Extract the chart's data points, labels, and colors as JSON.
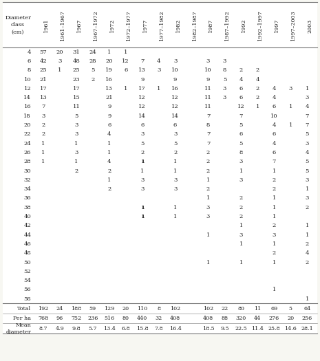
{
  "col_labels": [
    "Diameter\nclass\n(cm)",
    "1961",
    "1961–1967",
    "1967",
    "1967–1972",
    "1972",
    "1972–1977",
    "1977",
    "1977–1982",
    "1982",
    "1982–1987",
    "1987",
    "1987–1992",
    "1992",
    "1992–1997",
    "1997",
    "1997–2003",
    "2003"
  ],
  "diameter_classes": [
    4,
    6,
    8,
    10,
    12,
    14,
    16,
    18,
    20,
    22,
    24,
    26,
    28,
    30,
    32,
    34,
    36,
    38,
    40,
    42,
    44,
    46,
    48,
    50,
    52,
    54,
    56,
    58
  ],
  "data": {
    "4": [
      "57",
      "20",
      "31",
      "24",
      "1",
      "1",
      "",
      "",
      "",
      "",
      "",
      "",
      "",
      "",
      "",
      "",
      ""
    ],
    "6": [
      "42",
      "3",
      "48",
      "28",
      "20",
      "12",
      "7",
      "4",
      "3",
      "",
      "3",
      "3",
      "",
      "",
      "",
      "",
      ""
    ],
    "8": [
      "25",
      "1",
      "25",
      "5",
      "19",
      "6",
      "13",
      "3",
      "10",
      "",
      "10",
      "8",
      "2",
      "2",
      "",
      "",
      ""
    ],
    "10": [
      "21",
      "",
      "23",
      "2",
      "16",
      "",
      "9",
      "",
      "9",
      "",
      "9",
      "5",
      "4",
      "4",
      "",
      "",
      ""
    ],
    "12": [
      "17",
      "",
      "17",
      "",
      "13",
      "1",
      "17",
      "1",
      "16",
      "",
      "11",
      "3",
      "6",
      "2",
      "4",
      "3",
      "1"
    ],
    "14": [
      "13",
      "",
      "15",
      "",
      "21",
      "",
      "12",
      "",
      "12",
      "",
      "11",
      "3",
      "6",
      "2",
      "4",
      "",
      "3"
    ],
    "16": [
      "7",
      "",
      "11",
      "",
      "9",
      "",
      "12",
      "",
      "12",
      "",
      "11",
      "",
      "12",
      "1",
      "6",
      "1",
      "4"
    ],
    "18": [
      "3",
      "",
      "5",
      "",
      "9",
      "",
      "14",
      "",
      "14",
      "",
      "7",
      "",
      "7",
      "",
      "10",
      "",
      "7"
    ],
    "20": [
      "2",
      "",
      "3",
      "",
      "6",
      "",
      "6",
      "",
      "6",
      "",
      "8",
      "",
      "5",
      "",
      "4",
      "1",
      "7"
    ],
    "22": [
      "2",
      "",
      "3",
      "",
      "4",
      "",
      "3",
      "",
      "3",
      "",
      "7",
      "",
      "6",
      "",
      "6",
      "",
      "5"
    ],
    "24": [
      "1",
      "",
      "1",
      "",
      "1",
      "",
      "5",
      "",
      "5",
      "",
      "7",
      "",
      "5",
      "",
      "4",
      "",
      "3"
    ],
    "26": [
      "1",
      "",
      "3",
      "",
      "1",
      "",
      "2",
      "",
      "2",
      "",
      "2",
      "",
      "8",
      "",
      "6",
      "",
      "4"
    ],
    "28": [
      "1",
      "",
      "1",
      "",
      "4",
      "",
      "1",
      "",
      "1",
      "",
      "2",
      "",
      "3",
      "",
      "7",
      "",
      "5"
    ],
    "30": [
      "",
      "",
      "2",
      "",
      "2",
      "",
      "1",
      "",
      "1",
      "",
      "2",
      "",
      "1",
      "",
      "1",
      "",
      "5"
    ],
    "32": [
      "",
      "",
      "",
      "",
      "1",
      "",
      "3",
      "",
      "3",
      "",
      "1",
      "",
      "3",
      "",
      "2",
      "",
      "3"
    ],
    "34": [
      "",
      "",
      "",
      "",
      "2",
      "",
      "3",
      "",
      "3",
      "",
      "2",
      "",
      "",
      "",
      "2",
      "",
      "1"
    ],
    "36": [
      "",
      "",
      "",
      "",
      "",
      "",
      "",
      "",
      "",
      "",
      "1",
      "",
      "2",
      "",
      "1",
      "",
      "3"
    ],
    "38": [
      "",
      "",
      "",
      "",
      "",
      "",
      "1",
      "",
      "1",
      "",
      "3",
      "",
      "2",
      "",
      "1",
      "",
      "2"
    ],
    "40": [
      "",
      "",
      "",
      "",
      "",
      "",
      "1",
      "",
      "1",
      "",
      "3",
      "",
      "2",
      "",
      "1",
      "",
      ""
    ],
    "42": [
      "",
      "",
      "",
      "",
      "",
      "",
      "",
      "",
      "",
      "",
      "",
      "",
      "1",
      "",
      "2",
      "",
      "1"
    ],
    "44": [
      "",
      "",
      "",
      "",
      "",
      "",
      "",
      "",
      "",
      "",
      "1",
      "",
      "3",
      "",
      "3",
      "",
      "1"
    ],
    "46": [
      "",
      "",
      "",
      "",
      "",
      "",
      "",
      "",
      "",
      "",
      "",
      "",
      "1",
      "",
      "1",
      "",
      "2"
    ],
    "48": [
      "",
      "",
      "",
      "",
      "",
      "",
      "",
      "",
      "",
      "",
      "",
      "",
      "",
      "",
      "2",
      "",
      "4"
    ],
    "50": [
      "",
      "",
      "",
      "",
      "",
      "",
      "",
      "",
      "",
      "",
      "1",
      "",
      "1",
      "",
      "1",
      "",
      "2"
    ],
    "52": [
      "",
      "",
      "",
      "",
      "",
      "",
      "",
      "",
      "",
      "",
      "",
      "",
      "",
      "",
      "",
      "",
      ""
    ],
    "54": [
      "",
      "",
      "",
      "",
      "",
      "",
      "",
      "",
      "",
      "",
      "",
      "",
      "",
      "",
      "",
      "",
      ""
    ],
    "56": [
      "",
      "",
      "",
      "",
      "",
      "",
      "",
      "",
      "",
      "",
      "",
      "",
      "",
      "",
      "1",
      "",
      ""
    ],
    "58": [
      "",
      "",
      "",
      "",
      "",
      "",
      "",
      "",
      "",
      "",
      "",
      "",
      "",
      "",
      "",
      "",
      "1"
    ]
  },
  "totals": [
    "192",
    "24",
    "188",
    "59",
    "129",
    "20",
    "110",
    "8",
    "102",
    "",
    "102",
    "22",
    "80",
    "11",
    "69",
    "5",
    "64"
  ],
  "per_ha": [
    "768",
    "96",
    "752",
    "236",
    "516",
    "80",
    "440",
    "32",
    "408",
    "",
    "408",
    "88",
    "320",
    "44",
    "276",
    "20",
    "256"
  ],
  "mean_diam": [
    "8.7",
    "4.9",
    "9.8",
    "5.7",
    "13.4",
    "6.8",
    "15.8",
    "7.8",
    "16.4",
    "",
    "18.5",
    "9.5",
    "22.5",
    "11.4",
    "25.8",
    "14.6",
    "28.1"
  ],
  "bold_cells": {
    "28": [
      6
    ],
    "38": [
      6
    ],
    "40": [
      6
    ]
  },
  "bg_color": "#f7f7f2",
  "text_color": "#222222",
  "line_color": "#777777"
}
